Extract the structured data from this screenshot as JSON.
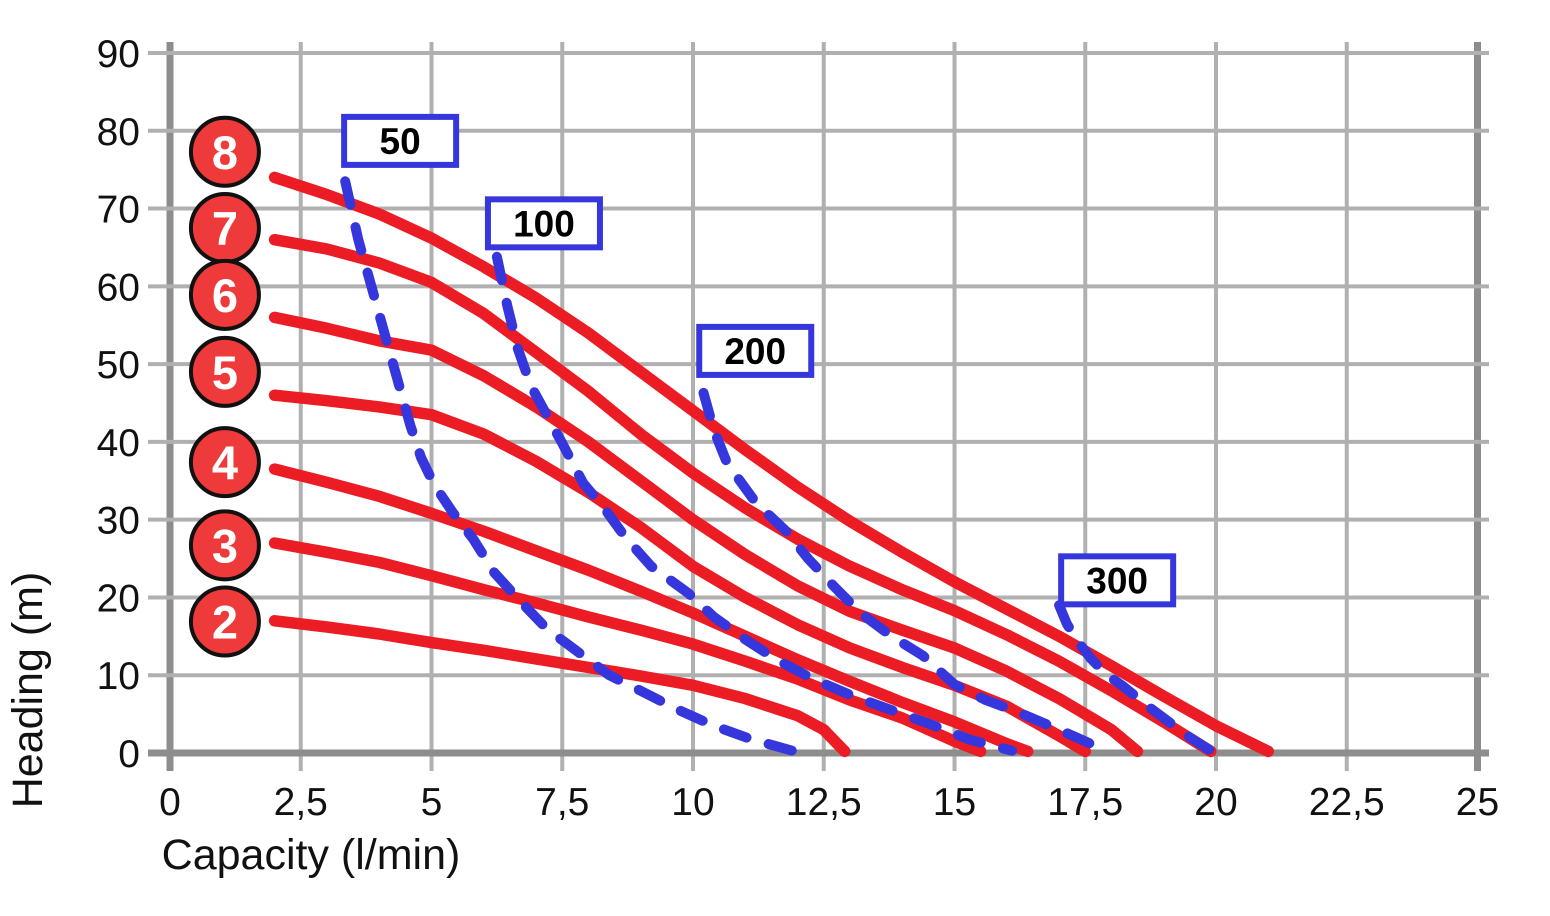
{
  "chart_data": {
    "type": "line",
    "title": "",
    "xlabel": "Capacity (l/min)",
    "ylabel": "Heading (m)",
    "xlim": [
      0,
      25
    ],
    "ylim": [
      0,
      90
    ],
    "grid": true,
    "legend_position": "none",
    "x_ticks": {
      "values": [
        0,
        2.5,
        5,
        7.5,
        10,
        12.5,
        15,
        17.5,
        20,
        22.5,
        25
      ],
      "labels": [
        "0",
        "2,5",
        "5",
        "7,5",
        "10",
        "12,5",
        "15",
        "17,5",
        "20",
        "22,5",
        "25"
      ]
    },
    "y_ticks": {
      "values": [
        0,
        10,
        20,
        30,
        40,
        50,
        60,
        70,
        80,
        90
      ],
      "labels": [
        "0",
        "10",
        "20",
        "30",
        "40",
        "50",
        "60",
        "70",
        "80",
        "90"
      ]
    },
    "colors": {
      "pump_curve": "#ec1c24",
      "flow_curve": "#3636dd",
      "grid": "#b0b0b0",
      "axis": "#8d8d8d",
      "badge_fill": "#ee3a3a",
      "badge_stroke": "#111111",
      "text": "#111111"
    },
    "series": [
      {
        "name": "2",
        "group": "pump-curve",
        "style": "solid",
        "points": [
          [
            2,
            17
          ],
          [
            3,
            16.2
          ],
          [
            4,
            15.3
          ],
          [
            5,
            14.2
          ],
          [
            6,
            13.2
          ],
          [
            7,
            12.1
          ],
          [
            8,
            11
          ],
          [
            9,
            9.9
          ],
          [
            10,
            8.7
          ],
          [
            11,
            7
          ],
          [
            12,
            4.8
          ],
          [
            12.5,
            3
          ],
          [
            12.9,
            0.2
          ]
        ]
      },
      {
        "name": "3",
        "group": "pump-curve",
        "style": "solid",
        "points": [
          [
            2,
            27
          ],
          [
            3,
            25.8
          ],
          [
            4,
            24.5
          ],
          [
            5,
            22.8
          ],
          [
            6,
            21
          ],
          [
            7,
            19.3
          ],
          [
            8,
            17.5
          ],
          [
            9,
            15.8
          ],
          [
            10,
            14
          ],
          [
            11,
            11.8
          ],
          [
            12,
            9.5
          ],
          [
            13,
            6.8
          ],
          [
            14,
            4.5
          ],
          [
            15,
            1.5
          ],
          [
            15.5,
            0.2
          ]
        ]
      },
      {
        "name": "4",
        "group": "pump-curve",
        "style": "solid",
        "points": [
          [
            2,
            36.5
          ],
          [
            3,
            34.8
          ],
          [
            4,
            33
          ],
          [
            5,
            30.8
          ],
          [
            6,
            28.5
          ],
          [
            7,
            26
          ],
          [
            8,
            23.5
          ],
          [
            9,
            20.8
          ],
          [
            10,
            18
          ],
          [
            11,
            15
          ],
          [
            12,
            12
          ],
          [
            13,
            9.2
          ],
          [
            14,
            6.5
          ],
          [
            15,
            4
          ],
          [
            16,
            1.2
          ],
          [
            16.4,
            0.2
          ]
        ]
      },
      {
        "name": "5",
        "group": "pump-curve",
        "style": "solid",
        "points": [
          [
            2,
            46
          ],
          [
            3,
            45.3
          ],
          [
            4,
            44.5
          ],
          [
            5,
            43.5
          ],
          [
            6,
            41
          ],
          [
            7,
            37.5
          ],
          [
            8,
            33.5
          ],
          [
            9,
            29
          ],
          [
            10,
            24
          ],
          [
            11,
            20
          ],
          [
            12,
            16.5
          ],
          [
            13,
            13.5
          ],
          [
            14,
            11
          ],
          [
            15,
            8.7
          ],
          [
            16,
            6
          ],
          [
            17,
            2.2
          ],
          [
            17.5,
            0.2
          ]
        ]
      },
      {
        "name": "6",
        "group": "pump-curve",
        "style": "solid",
        "points": [
          [
            2,
            56
          ],
          [
            3,
            54.6
          ],
          [
            4,
            53
          ],
          [
            5,
            51.8
          ],
          [
            6,
            48.5
          ],
          [
            7,
            44.5
          ],
          [
            8,
            40
          ],
          [
            9,
            35
          ],
          [
            10,
            30
          ],
          [
            11,
            25.5
          ],
          [
            12,
            21.5
          ],
          [
            13,
            18.2
          ],
          [
            14,
            15.8
          ],
          [
            15,
            13.5
          ],
          [
            16,
            10.5
          ],
          [
            17,
            7
          ],
          [
            18,
            3
          ],
          [
            18.5,
            0.2
          ]
        ]
      },
      {
        "name": "7",
        "group": "pump-curve",
        "style": "solid",
        "points": [
          [
            2,
            66
          ],
          [
            3,
            64.8
          ],
          [
            4,
            63
          ],
          [
            5,
            60.5
          ],
          [
            6,
            56.5
          ],
          [
            7,
            51.5
          ],
          [
            8,
            46.5
          ],
          [
            9,
            41
          ],
          [
            10,
            36
          ],
          [
            11,
            31.5
          ],
          [
            12,
            27.5
          ],
          [
            13,
            24
          ],
          [
            14,
            21
          ],
          [
            15,
            18.3
          ],
          [
            16,
            15.2
          ],
          [
            17,
            11.8
          ],
          [
            18,
            8
          ],
          [
            19,
            4
          ],
          [
            19.9,
            0.2
          ]
        ]
      },
      {
        "name": "8",
        "group": "pump-curve",
        "style": "solid",
        "points": [
          [
            2,
            74
          ],
          [
            3,
            71.8
          ],
          [
            4,
            69.3
          ],
          [
            5,
            66.2
          ],
          [
            6,
            62.5
          ],
          [
            7,
            58.5
          ],
          [
            8,
            54
          ],
          [
            9,
            49
          ],
          [
            10,
            44
          ],
          [
            11,
            39
          ],
          [
            12,
            34.2
          ],
          [
            13,
            29.8
          ],
          [
            14,
            25.8
          ],
          [
            15,
            22
          ],
          [
            16,
            18.5
          ],
          [
            17,
            15
          ],
          [
            18,
            11.2
          ],
          [
            19,
            7.3
          ],
          [
            20,
            3.5
          ],
          [
            21,
            0.2
          ]
        ]
      },
      {
        "name": "50",
        "group": "flow-curve",
        "style": "dashed",
        "points": [
          [
            3.35,
            73.5
          ],
          [
            3.6,
            66
          ],
          [
            3.85,
            60
          ],
          [
            4.1,
            54
          ],
          [
            4.35,
            48
          ],
          [
            4.6,
            42
          ],
          [
            4.8,
            38
          ],
          [
            5.05,
            34.5
          ],
          [
            5.4,
            31
          ],
          [
            5.8,
            27.5
          ],
          [
            6.2,
            23.2
          ],
          [
            6.7,
            19.5
          ],
          [
            7.2,
            16
          ],
          [
            7.8,
            13
          ],
          [
            8.4,
            10
          ],
          [
            9,
            8
          ],
          [
            9.7,
            5.6
          ],
          [
            10.4,
            3.5
          ],
          [
            11.1,
            1.8
          ],
          [
            11.9,
            0.3
          ]
        ]
      },
      {
        "name": "100",
        "group": "flow-curve",
        "style": "dashed",
        "points": [
          [
            6.25,
            63.8
          ],
          [
            6.45,
            57.5
          ],
          [
            6.65,
            52
          ],
          [
            6.9,
            47.2
          ],
          [
            7.2,
            43.5
          ],
          [
            7.5,
            39.8
          ],
          [
            7.9,
            34.7
          ],
          [
            8.3,
            31.5
          ],
          [
            8.7,
            27.8
          ],
          [
            9.2,
            24
          ],
          [
            9.9,
            20.6
          ],
          [
            10.4,
            17.5
          ],
          [
            11,
            14.6
          ],
          [
            11.6,
            12
          ],
          [
            12.3,
            9.5
          ],
          [
            13.1,
            7.2
          ],
          [
            13.8,
            5.5
          ],
          [
            14.5,
            3.8
          ],
          [
            15.3,
            1.7
          ],
          [
            16.1,
            0.3
          ]
        ]
      },
      {
        "name": "200",
        "group": "flow-curve",
        "style": "dashed",
        "points": [
          [
            10.2,
            46.3
          ],
          [
            10.4,
            41.5
          ],
          [
            10.65,
            37.3
          ],
          [
            11.2,
            32.2
          ],
          [
            11.8,
            28.4
          ],
          [
            12.2,
            25
          ],
          [
            12.7,
            21.4
          ],
          [
            13.2,
            18
          ],
          [
            13.8,
            15
          ],
          [
            14.4,
            12.5
          ],
          [
            15,
            8.8
          ],
          [
            15.6,
            6.8
          ],
          [
            16.2,
            5.3
          ],
          [
            17,
            3
          ],
          [
            17.9,
            0.3
          ]
        ]
      },
      {
        "name": "300",
        "group": "flow-curve",
        "style": "dashed",
        "points": [
          [
            17,
            19
          ],
          [
            17.15,
            16.6
          ],
          [
            17.35,
            14.4
          ],
          [
            17.6,
            12.2
          ],
          [
            17.9,
            10.1
          ],
          [
            18.2,
            8.7
          ],
          [
            18.7,
            6
          ],
          [
            19.1,
            4
          ],
          [
            19.5,
            2
          ],
          [
            19.9,
            0.3
          ]
        ]
      }
    ],
    "curve_badges": [
      {
        "label": "8",
        "x": 1.05,
        "y": 77.3
      },
      {
        "label": "7",
        "x": 1.05,
        "y": 67.5
      },
      {
        "label": "6",
        "x": 1.05,
        "y": 58.9
      },
      {
        "label": "5",
        "x": 1.05,
        "y": 49.0
      },
      {
        "label": "4",
        "x": 1.05,
        "y": 37.4
      },
      {
        "label": "3",
        "x": 1.05,
        "y": 26.7
      },
      {
        "label": "2",
        "x": 1.05,
        "y": 16.9
      }
    ],
    "flow_labels": [
      {
        "label": "50",
        "x": 4.4,
        "y": 78.7
      },
      {
        "label": "100",
        "x": 7.15,
        "y": 68.1
      },
      {
        "label": "200",
        "x": 11.19,
        "y": 51.7
      },
      {
        "label": "300",
        "x": 18.11,
        "y": 22.2
      }
    ]
  }
}
